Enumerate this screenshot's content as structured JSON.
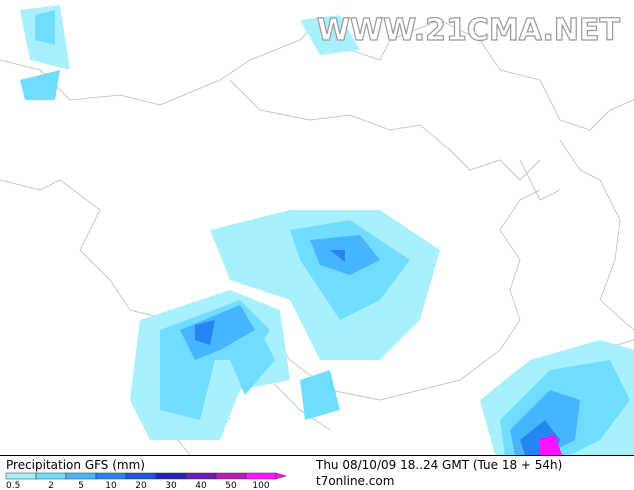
{
  "watermark": "WWW.21CMA.NET",
  "footer": {
    "title": "Precipitation GFS (mm)",
    "timestamp": "Thu 08/10/09 18..24 GMT (Tue 18 + 54h)",
    "source": "t7online.com"
  },
  "legend": {
    "items": [
      {
        "label": "0.5",
        "color": "#a8f0ff"
      },
      {
        "label": "2",
        "color": "#70dcff"
      },
      {
        "label": "5",
        "color": "#46b4ff"
      },
      {
        "label": "10",
        "color": "#2684f0"
      },
      {
        "label": "20",
        "color": "#1c54dc"
      },
      {
        "label": "30",
        "color": "#2424b4"
      },
      {
        "label": "40",
        "color": "#6a1eb4"
      },
      {
        "label": "50",
        "color": "#b41eb4"
      },
      {
        "label": "100",
        "color": "#ff14ff"
      }
    ]
  }
}
